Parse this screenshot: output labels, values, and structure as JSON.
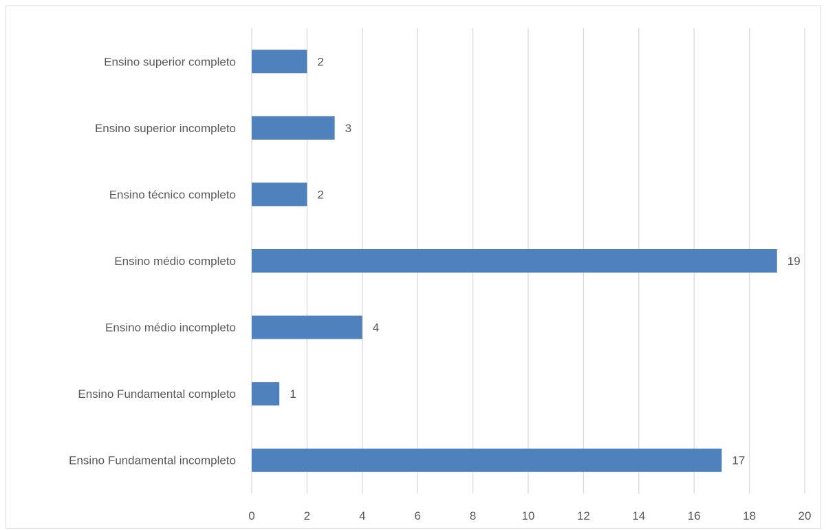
{
  "chart_data": {
    "type": "bar",
    "orientation": "horizontal",
    "categories": [
      "Ensino Fundamental incompleto",
      "Ensino Fundamental completo",
      "Ensino médio incompleto",
      "Ensino médio completo",
      "Ensino técnico completo",
      "Ensino superior incompleto",
      "Ensino superior completo"
    ],
    "values": [
      17,
      1,
      4,
      19,
      2,
      3,
      2
    ],
    "data_labels": [
      "17",
      "1",
      "4",
      "19",
      "2",
      "3",
      "2"
    ],
    "xlim": [
      0,
      20
    ],
    "x_ticks": [
      0,
      2,
      4,
      6,
      8,
      10,
      12,
      14,
      16,
      18,
      20
    ],
    "x_tick_labels": [
      "0",
      "2",
      "4",
      "6",
      "8",
      "10",
      "12",
      "14",
      "16",
      "18",
      "20"
    ],
    "title": "",
    "xlabel": "",
    "ylabel": "",
    "grid": "vertical",
    "legend": "none",
    "colors": {
      "bar": "#4f81bd",
      "grid": "#d9d9d9",
      "text": "#595959",
      "frame": "#d9d9d9"
    }
  }
}
